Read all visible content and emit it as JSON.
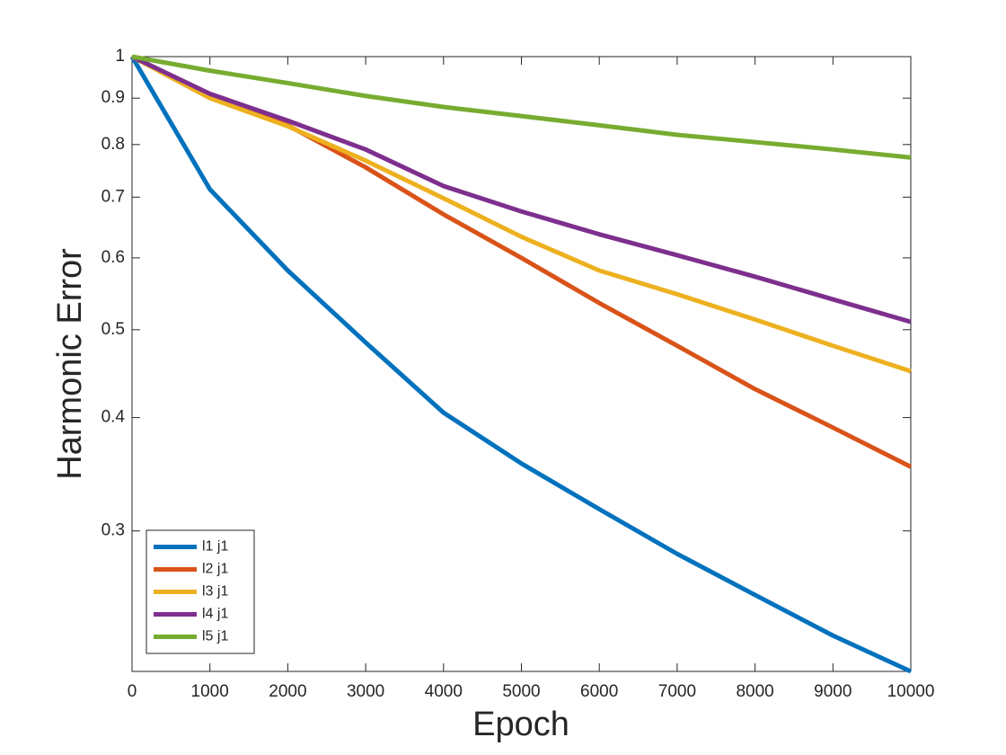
{
  "chart_data": {
    "type": "line",
    "xlabel": "Epoch",
    "ylabel": "Harmonic Error",
    "x": [
      0,
      1000,
      2000,
      3000,
      4000,
      5000,
      6000,
      7000,
      8000,
      9000,
      10000
    ],
    "series": [
      {
        "name": "l1 j1",
        "color": "#0072bd",
        "values": [
          1,
          0.714,
          0.581,
          0.484,
          0.405,
          0.356,
          0.317,
          0.283,
          0.255,
          0.23,
          0.21
        ]
      },
      {
        "name": "l2 j1",
        "color": "#d95319",
        "values": [
          1,
          0.905,
          0.84,
          0.755,
          0.67,
          0.6,
          0.535,
          0.48,
          0.43,
          0.39,
          0.353
        ]
      },
      {
        "name": "l3 j1",
        "color": "#edb120",
        "values": [
          1,
          0.9,
          0.838,
          0.768,
          0.698,
          0.633,
          0.581,
          0.547,
          0.513,
          0.48,
          0.45
        ]
      },
      {
        "name": "l4 j1",
        "color": "#7e2f8e",
        "values": [
          1,
          0.91,
          0.85,
          0.79,
          0.72,
          0.675,
          0.637,
          0.604,
          0.572,
          0.54,
          0.51
        ]
      },
      {
        "name": "l5 j1",
        "color": "#77ac30",
        "values": [
          1,
          0.965,
          0.935,
          0.905,
          0.88,
          0.86,
          0.84,
          0.82,
          0.805,
          0.79,
          0.774
        ]
      }
    ],
    "xlim": [
      0,
      10000
    ],
    "xticks": [
      0,
      1000,
      2000,
      3000,
      4000,
      5000,
      6000,
      7000,
      8000,
      9000,
      10000
    ],
    "ylim": [
      0.21,
      1
    ],
    "yticks": [
      0.3,
      0.4,
      0.5,
      0.6,
      0.7,
      0.8,
      0.9,
      1
    ],
    "yscale": "log",
    "grid": false,
    "legend": "southwest"
  }
}
